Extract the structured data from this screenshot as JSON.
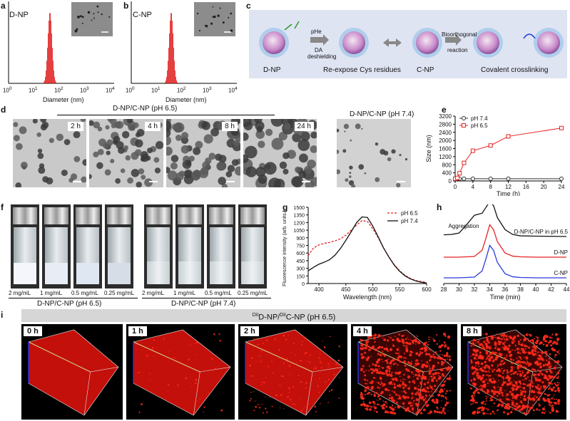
{
  "panel_labels": {
    "a": "a",
    "b": "b",
    "c": "c",
    "d": "d",
    "e": "e",
    "f": "f",
    "g": "g",
    "h": "h",
    "i": "i"
  },
  "panel_a": {
    "title": "D-NP",
    "xlabel": "Diameter (nm)",
    "xticks": [
      "10^0",
      "10^1",
      "10^2",
      "10^3",
      "10^4"
    ]
  },
  "panel_b": {
    "title": "C-NP",
    "xlabel": "Diameter (nm)",
    "xticks": [
      "10^0",
      "10^1",
      "10^2",
      "10^3",
      "10^4"
    ]
  },
  "panel_c": {
    "labels": {
      "dnp": "D-NP",
      "reexpose": "Re-expose Cys residues",
      "cnp": "C-NP",
      "crosslink": "Covalent crosslinking",
      "phe": "pHe",
      "deshield1": "DA",
      "deshield2": "deshielding",
      "bio1": "Bioorthogonal",
      "bio2": "reaction"
    }
  },
  "panel_d": {
    "header_65": "D-NP/C-NP (pH 6.5)",
    "header_74": "D-NP/C-NP (pH 7.4)",
    "time_labels": [
      "2 h",
      "4 h",
      "8 h",
      "24 h"
    ]
  },
  "chart_data": [
    {
      "type": "line",
      "panel": "e",
      "title": "",
      "xlabel": "Time (h)",
      "ylabel": "Size (nm)",
      "xlim": [
        0,
        24
      ],
      "ylim": [
        0,
        3200
      ],
      "xticks": [
        0,
        4,
        8,
        12,
        16,
        20,
        24
      ],
      "yticks": [
        0,
        400,
        800,
        1200,
        1600,
        2000,
        2400,
        2800,
        3200
      ],
      "series": [
        {
          "name": "pH 7.4",
          "color": "#333333",
          "x": [
            0,
            0.5,
            1,
            2,
            4,
            8,
            12,
            24
          ],
          "y": [
            110,
            110,
            110,
            110,
            110,
            110,
            110,
            110
          ]
        },
        {
          "name": "pH 6.5",
          "color": "#e52323",
          "x": [
            0,
            0.5,
            1,
            2,
            4,
            8,
            12,
            24
          ],
          "y": [
            110,
            150,
            380,
            890,
            1490,
            1750,
            2200,
            2610
          ]
        }
      ]
    },
    {
      "type": "line",
      "panel": "g",
      "xlabel": "Wavelength (nm)",
      "ylabel": "Fluorescence intensity (arb. units.)",
      "xlim": [
        400,
        600
      ],
      "ylim": [
        0,
        1500
      ],
      "xticks": [
        400,
        450,
        500,
        550,
        600
      ],
      "yticks": [
        0,
        150,
        300,
        450,
        600,
        750,
        900,
        1050,
        1200,
        1350,
        1500
      ],
      "series": [
        {
          "name": "pH 6.5",
          "color": "#e52323",
          "dashed": true,
          "x": [
            380,
            390,
            400,
            410,
            420,
            430,
            440,
            450,
            460,
            470,
            480,
            490,
            500,
            510,
            520,
            530,
            540,
            550,
            560,
            570,
            580,
            590,
            600
          ],
          "y": [
            550,
            700,
            760,
            790,
            810,
            840,
            880,
            950,
            1050,
            1150,
            1240,
            1220,
            1080,
            900,
            700,
            520,
            370,
            250,
            160,
            100,
            60,
            40,
            20
          ]
        },
        {
          "name": "pH 7.4",
          "color": "#111111",
          "dashed": false,
          "x": [
            380,
            390,
            400,
            410,
            420,
            430,
            440,
            450,
            460,
            470,
            480,
            490,
            500,
            510,
            520,
            530,
            540,
            550,
            560,
            570,
            580,
            590,
            600
          ],
          "y": [
            250,
            320,
            380,
            420,
            470,
            560,
            690,
            850,
            1020,
            1200,
            1310,
            1300,
            1130,
            920,
            700,
            520,
            360,
            240,
            150,
            90,
            50,
            25,
            10
          ]
        }
      ]
    },
    {
      "type": "line",
      "panel": "h",
      "xlabel": "Time (min)",
      "xlim": [
        28,
        44
      ],
      "xticks": [
        28,
        30,
        32,
        34,
        36,
        38,
        40,
        42,
        44
      ],
      "annotation": "Aggregation",
      "series": [
        {
          "name": "D-NP/C-NP in pH 6.5",
          "color": "#111111",
          "offset": 2,
          "x": [
            28,
            29,
            30,
            31,
            32,
            33,
            33.5,
            34,
            34.5,
            35,
            36,
            37,
            38,
            40,
            44
          ],
          "y": [
            0.05,
            0.06,
            0.1,
            0.35,
            0.62,
            0.68,
            0.85,
            1.02,
            0.9,
            0.55,
            0.2,
            0.06,
            0.02,
            0.01,
            0
          ]
        },
        {
          "name": "D-NP",
          "color": "#e52323",
          "offset": 1,
          "x": [
            28,
            30,
            32,
            33,
            33.5,
            34,
            34.5,
            35,
            36,
            37,
            38,
            40,
            44
          ],
          "y": [
            0,
            0,
            0.02,
            0.2,
            0.55,
            0.95,
            0.8,
            0.45,
            0.12,
            0.03,
            0.01,
            0,
            0
          ]
        },
        {
          "name": "C-NP",
          "color": "#2a3bd8",
          "offset": 0,
          "x": [
            28,
            30,
            32,
            33,
            33.5,
            34,
            34.5,
            35,
            36,
            37,
            38,
            40,
            44
          ],
          "y": [
            0,
            0,
            0.02,
            0.2,
            0.55,
            0.95,
            0.8,
            0.45,
            0.12,
            0.03,
            0.01,
            0,
            0
          ]
        }
      ]
    }
  ],
  "panel_f": {
    "concs": [
      "2 mg/mL",
      "1 mg/mL",
      "0.5 mg/mL",
      "0.25 mg/mL"
    ],
    "group_65": "D-NP/C-NP (pH 6.5)",
    "group_74": "D-NP/C-NP (pH 7.4)"
  },
  "panel_i": {
    "banner_sup1": "DiI",
    "banner_main1": "D-NP/",
    "banner_sup2": "DiI",
    "banner_main2": "C-NP (pH 6.5)",
    "time_labels": [
      "0 h",
      "1 h",
      "2 h",
      "4 h",
      "8 h"
    ]
  }
}
